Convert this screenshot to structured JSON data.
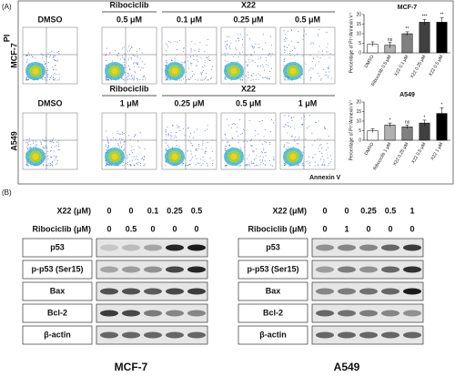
{
  "panel_a": {
    "label": "(A)",
    "y_axis": "PI",
    "x_axis": "Annexin V",
    "rows": [
      {
        "cell_line": "MCF-7",
        "groups": [
          {
            "label": "DMSO"
          },
          {
            "label": "Ribociclib",
            "doses": [
              "0.5 μM"
            ]
          },
          {
            "label": "X22",
            "doses": [
              "0.1 μM",
              "0.25 μM",
              "0.5 μM"
            ]
          }
        ]
      },
      {
        "cell_line": "A549",
        "groups": [
          {
            "label": "DMSO"
          },
          {
            "label": "Ribociclib",
            "doses": [
              "1 μM"
            ]
          },
          {
            "label": "X22",
            "doses": [
              "0.25 μM",
              "0.5 μM",
              "1 μM"
            ]
          }
        ]
      }
    ]
  },
  "chart_data": [
    {
      "type": "bar",
      "title": "MCF-7",
      "y_label": "Percentage of PI⁺/Annexin V⁺",
      "categories": [
        "DMSO",
        "Ribociclib 0.5 μM",
        "X22 0.1 μM",
        "X22 0.25 μM",
        "X22 0.5 μM"
      ],
      "values": [
        4.5,
        4,
        10,
        16,
        16
      ],
      "errors": [
        1.2,
        1.5,
        1,
        1.5,
        2.5
      ],
      "annotations": [
        null,
        "ns",
        "**",
        "***",
        "**"
      ],
      "colors": [
        "#ffffff",
        "#b0b0b0",
        "#808080",
        "#404040",
        "#000000"
      ],
      "ylim": [
        0,
        20
      ],
      "yticks": [
        0,
        5,
        10,
        15,
        20
      ]
    },
    {
      "type": "bar",
      "title": "A549",
      "y_label": "Percentage of PI⁺/Annexin V⁺",
      "categories": [
        "DMSO",
        "Ribociclib 1 μM",
        "X22 0.25 μM",
        "X22 0.5 μM",
        "X22 1 μM"
      ],
      "values": [
        5,
        8,
        7,
        9,
        14
      ],
      "errors": [
        1,
        1,
        1,
        1.5,
        3
      ],
      "annotations": [
        null,
        "*",
        "ns",
        "*",
        "*"
      ],
      "colors": [
        "#ffffff",
        "#b0b0b0",
        "#808080",
        "#404040",
        "#000000"
      ],
      "ylim": [
        0,
        20
      ],
      "yticks": [
        0,
        5,
        10,
        15,
        20
      ]
    }
  ],
  "panel_b": {
    "label": "(B)",
    "blots": [
      {
        "cell_line": "MCF-7",
        "treatments": [
          {
            "label": "X22 (μM)",
            "values": [
              0,
              0,
              0.1,
              0.25,
              0.5
            ]
          },
          {
            "label": "Ribociclib (μM)",
            "values": [
              0,
              0.5,
              0,
              0,
              0
            ]
          }
        ],
        "proteins": [
          "p53",
          "p-p53 (Ser15)",
          "Bax",
          "Bcl-2",
          "β-actin"
        ]
      },
      {
        "cell_line": "A549",
        "treatments": [
          {
            "label": "X22 (μM)",
            "values": [
              0,
              0,
              0.25,
              0.5,
              1
            ]
          },
          {
            "label": "Ribociclib (μM)",
            "values": [
              0,
              1,
              0,
              0,
              0
            ]
          }
        ],
        "proteins": [
          "p53",
          "p-p53 (Ser15)",
          "Bax",
          "Bcl-2",
          "β-actin"
        ]
      }
    ]
  }
}
